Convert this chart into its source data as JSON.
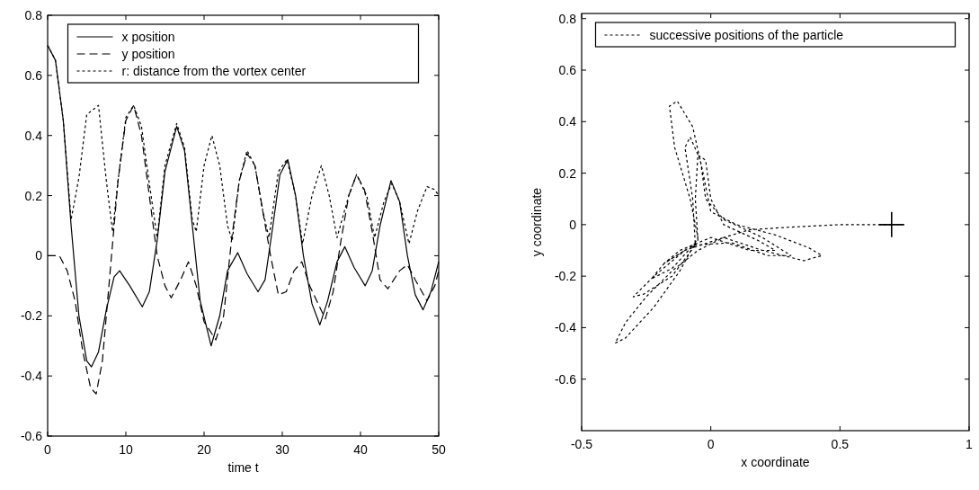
{
  "chart_data": [
    {
      "type": "line",
      "xlabel": "time t",
      "xlim": [
        0,
        50
      ],
      "xticks": [
        0,
        10,
        20,
        30,
        40,
        50
      ],
      "ylim": [
        -0.6,
        0.8
      ],
      "yticks": [
        -0.6,
        -0.4,
        -0.2,
        0,
        0.2,
        0.4,
        0.6,
        0.8
      ],
      "legend": "top",
      "grid": false,
      "series": [
        {
          "name": "x position",
          "color": "#000000",
          "line_style": "solid",
          "x": [
            0,
            1,
            2,
            3,
            4,
            5,
            5.6,
            6.5,
            7.5,
            8.5,
            9.2,
            10.5,
            12.1,
            13,
            14,
            15,
            16.5,
            17.5,
            18.5,
            19.5,
            20.9,
            22,
            23,
            24.3,
            25.5,
            26.9,
            27.8,
            28.8,
            29.7,
            30.7,
            31.7,
            32.7,
            33.8,
            34.8,
            35.8,
            37,
            38,
            39.2,
            40.6,
            41.5,
            42.5,
            43.9,
            45,
            46,
            47,
            48,
            49,
            50
          ],
          "values": [
            0.7,
            0.65,
            0.45,
            0.1,
            -0.2,
            -0.35,
            -0.37,
            -0.32,
            -0.18,
            -0.07,
            -0.05,
            -0.1,
            -0.17,
            -0.12,
            0.05,
            0.28,
            0.43,
            0.35,
            0.1,
            -0.15,
            -0.3,
            -0.2,
            -0.05,
            0.01,
            -0.06,
            -0.12,
            -0.08,
            0.1,
            0.27,
            0.32,
            0.2,
            0,
            -0.16,
            -0.23,
            -0.15,
            -0.02,
            0.03,
            -0.04,
            -0.1,
            -0.05,
            0.1,
            0.25,
            0.18,
            0,
            -0.13,
            -0.18,
            -0.12,
            -0.02
          ]
        },
        {
          "name": "y position",
          "color": "#000000",
          "line_style": "dashed",
          "x": [
            0,
            1.5,
            2.5,
            3.5,
            4.5,
            5.5,
            6.2,
            7,
            8,
            9,
            10,
            11,
            12,
            13,
            14,
            15,
            15.8,
            17,
            18,
            19,
            20,
            21.5,
            22.5,
            23.5,
            24.5,
            25.5,
            26.5,
            27.5,
            28.5,
            29.5,
            30.5,
            31.5,
            32.5,
            33.5,
            35.5,
            36.5,
            37.5,
            38.5,
            39.5,
            40.5,
            41.5,
            42.5,
            43.5,
            45,
            46,
            47,
            48.5,
            49.5,
            50
          ],
          "values": [
            0,
            0,
            -0.05,
            -0.15,
            -0.32,
            -0.44,
            -0.46,
            -0.35,
            -0.05,
            0.25,
            0.45,
            0.5,
            0.4,
            0.2,
            0,
            -0.1,
            -0.14,
            -0.08,
            -0.02,
            -0.1,
            -0.22,
            -0.28,
            -0.2,
            0.05,
            0.25,
            0.34,
            0.3,
            0.15,
            0,
            -0.13,
            -0.12,
            -0.05,
            -0.02,
            -0.1,
            -0.21,
            -0.12,
            0.05,
            0.2,
            0.27,
            0.22,
            0.08,
            -0.08,
            -0.11,
            -0.05,
            -0.03,
            -0.08,
            -0.15,
            -0.1,
            -0.05
          ]
        },
        {
          "name": "r: distance from the vortex center",
          "color": "#000000",
          "line_style": "dotted",
          "x": [
            0,
            1,
            2,
            3,
            4,
            5,
            6.5,
            7.5,
            8.3,
            9,
            10,
            11,
            12,
            13,
            14,
            15,
            16.5,
            17.5,
            18.5,
            19,
            20,
            21,
            22,
            23,
            23.6,
            24.5,
            25.5,
            26.5,
            27.5,
            28.3,
            29.5,
            30.6,
            31.7,
            32.6,
            33.8,
            35,
            36,
            37,
            38.5,
            39.5,
            40.8,
            41.8,
            43,
            44,
            45,
            46.2,
            47.3,
            48.5,
            49.5,
            50
          ],
          "values": [
            0.7,
            0.65,
            0.45,
            0.12,
            0.26,
            0.47,
            0.5,
            0.25,
            0.08,
            0.25,
            0.46,
            0.5,
            0.43,
            0.24,
            0.06,
            0.3,
            0.44,
            0.36,
            0.12,
            0.08,
            0.3,
            0.4,
            0.3,
            0.1,
            0.05,
            0.25,
            0.35,
            0.3,
            0.15,
            0.06,
            0.28,
            0.32,
            0.2,
            0.04,
            0.2,
            0.3,
            0.2,
            0.06,
            0.2,
            0.27,
            0.2,
            0.06,
            0.18,
            0.24,
            0.18,
            0.04,
            0.15,
            0.23,
            0.22,
            0.2
          ]
        }
      ]
    },
    {
      "type": "line",
      "xlabel": "x coordinate",
      "ylabel": "y coordinate",
      "xlim": [
        -0.5,
        1
      ],
      "xticks": [
        -0.5,
        0,
        0.5,
        1
      ],
      "ylim": [
        -0.8,
        0.82
      ],
      "yticks": [
        -0.6,
        -0.4,
        -0.2,
        0,
        0.2,
        0.4,
        0.6,
        0.8
      ],
      "legend": "top",
      "grid": false,
      "series": [
        {
          "name": "successive positions of the particle",
          "color": "#000000",
          "line_style": "dotted",
          "x": [
            0.7,
            0.5,
            0.3,
            0.15,
            0.05,
            -0.05,
            -0.15,
            -0.25,
            -0.33,
            -0.37,
            -0.33,
            -0.22,
            -0.12,
            -0.05,
            -0.08,
            -0.14,
            -0.16,
            -0.13,
            -0.07,
            -0.03,
            0,
            0.1,
            0.25,
            0.38,
            0.43,
            0.36,
            0.2,
            0.05,
            -0.1,
            -0.22,
            -0.3,
            -0.26,
            -0.15,
            -0.06,
            -0.07,
            -0.1,
            -0.08,
            -0.04,
            -0.02,
            0.05,
            0.2,
            0.31,
            0.22,
            0.08,
            -0.07,
            -0.18,
            -0.23,
            -0.15,
            -0.05,
            -0.06,
            -0.05,
            -0.02,
            0,
            0.05,
            0.18,
            0.25,
            0.15,
            0,
            -0.12,
            -0.18,
            -0.1
          ],
          "values": [
            0,
            0,
            -0.01,
            -0.02,
            -0.05,
            -0.1,
            -0.18,
            -0.28,
            -0.38,
            -0.46,
            -0.44,
            -0.32,
            -0.18,
            -0.05,
            0.1,
            0.3,
            0.46,
            0.48,
            0.38,
            0.2,
            0.05,
            0,
            -0.04,
            -0.09,
            -0.12,
            -0.14,
            -0.1,
            -0.05,
            -0.1,
            -0.2,
            -0.28,
            -0.27,
            -0.2,
            -0.08,
            0.1,
            0.3,
            0.34,
            0.25,
            0.1,
            0.02,
            -0.05,
            -0.12,
            -0.12,
            -0.07,
            -0.08,
            -0.15,
            -0.21,
            -0.17,
            -0.06,
            0.1,
            0.27,
            0.25,
            0.1,
            0,
            -0.06,
            -0.1,
            -0.1,
            -0.05,
            -0.1,
            -0.15,
            -0.1
          ]
        },
        {
          "type": "scatter",
          "color": "#000000",
          "marker": "cross",
          "x": [
            0.7
          ],
          "values": [
            0
          ]
        }
      ]
    }
  ]
}
